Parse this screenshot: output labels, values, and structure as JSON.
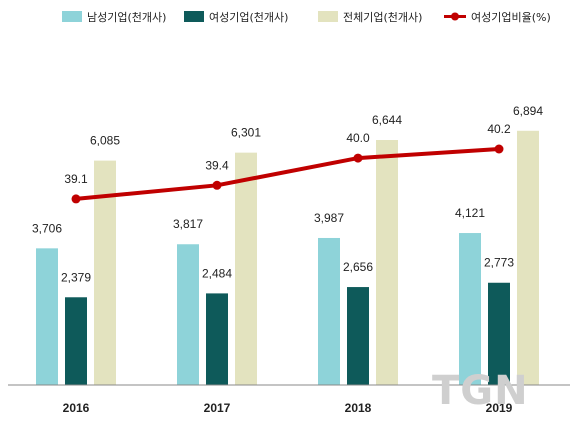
{
  "chart_data": {
    "type": "bar",
    "categories": [
      "2016",
      "2017",
      "2018",
      "2019"
    ],
    "series": [
      {
        "name": "남성기업(천개사)",
        "values": [
          3706,
          3817,
          3987,
          4121
        ],
        "labels": [
          "3,706",
          "3,817",
          "3,987",
          "4,121"
        ],
        "color": "#8ed3d9"
      },
      {
        "name": "여성기업(천개사)",
        "values": [
          2379,
          2484,
          2656,
          2773
        ],
        "labels": [
          "2,379",
          "2,484",
          "2,656",
          "2,773"
        ],
        "color": "#0e5a5a"
      },
      {
        "name": "전체기업(천개사)",
        "values": [
          6085,
          6301,
          6644,
          6894
        ],
        "labels": [
          "6,085",
          "6,301",
          "6,644",
          "6,894"
        ],
        "color": "#e3e3bf"
      }
    ],
    "line_series": {
      "name": "여성기업비율(%)",
      "values": [
        39.1,
        39.4,
        40.0,
        40.2
      ],
      "labels": [
        "39.1",
        "39.4",
        "40.0",
        "40.2"
      ],
      "color": "#c00000"
    },
    "ylim": [
      0,
      8000
    ],
    "line_ylim": [
      35,
      41.5
    ],
    "grid": false,
    "legend_position": "top"
  },
  "watermark": "TGN"
}
